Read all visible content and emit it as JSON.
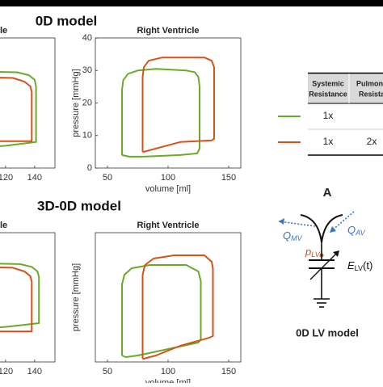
{
  "panel_titles": [
    "0D model",
    "3D-0D model"
  ],
  "chart_data": [
    {
      "type": "line",
      "title": "le",
      "xlim": [
        100,
        154
      ],
      "ylim": [
        0,
        140
      ],
      "xticks": [
        120,
        140
      ],
      "series": [
        {
          "color": "#6aaa2a",
          "x": [
            100,
            128,
            136,
            140,
            141,
            141,
            120,
            100
          ],
          "values": [
            104,
            103,
            100,
            95,
            88,
            28,
            24,
            22
          ]
        },
        {
          "color": "#d2541b",
          "x": [
            100,
            125,
            133,
            137,
            138,
            138,
            100
          ],
          "values": [
            98,
            97,
            93,
            88,
            82,
            29,
            29
          ]
        }
      ]
    },
    {
      "type": "line",
      "title": "Right Ventricle",
      "xlabel": "volume [ml]",
      "ylabel": "pressure [mmHg]",
      "xlim": [
        40,
        160
      ],
      "ylim": [
        0,
        40
      ],
      "xticks": [
        50,
        100,
        150
      ],
      "yticks": [
        0,
        10,
        20,
        30,
        40
      ],
      "series": [
        {
          "color": "#6aaa2a",
          "x": [
            62,
            62,
            63,
            67,
            75,
            90,
            115,
            122,
            125,
            126,
            126,
            124,
            110,
            80,
            68,
            62
          ],
          "values": [
            4,
            24,
            27,
            29,
            30,
            30.5,
            30,
            29.5,
            28,
            25,
            6,
            4.5,
            4,
            3.5,
            3.5,
            4
          ]
        },
        {
          "color": "#d2541b",
          "x": [
            79,
            79,
            80,
            84,
            95,
            130,
            136,
            138,
            138,
            136,
            110,
            90,
            80,
            79
          ],
          "values": [
            5,
            28,
            31,
            33,
            34,
            34,
            33,
            31,
            9,
            8.5,
            8,
            6,
            5,
            5
          ]
        }
      ]
    },
    {
      "type": "line",
      "title": "le",
      "xlim": [
        100,
        154
      ],
      "ylim": [
        0,
        140
      ],
      "xticks": [
        120,
        140
      ],
      "series": [
        {
          "color": "#6aaa2a",
          "x": [
            100,
            130,
            138,
            142,
            143,
            143,
            120,
            100
          ],
          "values": [
            107,
            106,
            103,
            98,
            92,
            42,
            38,
            36
          ]
        },
        {
          "color": "#d2541b",
          "x": [
            100,
            125,
            133,
            137,
            138,
            138,
            100
          ],
          "values": [
            103,
            102,
            98,
            93,
            87,
            33,
            33
          ]
        }
      ]
    },
    {
      "type": "line",
      "title": "Right Ventricle",
      "xlabel": "volume [ml]",
      "ylabel": "pressure [mmHg]",
      "xlim": [
        40,
        160
      ],
      "ylim": [
        0,
        40
      ],
      "xticks": [
        50,
        100,
        150
      ],
      "series": [
        {
          "color": "#6aaa2a",
          "x": [
            62,
            62,
            64,
            70,
            85,
            115,
            125,
            127,
            127,
            125,
            100,
            75,
            65,
            62
          ],
          "values": [
            2,
            24,
            27,
            29,
            30,
            30,
            28,
            25,
            7,
            6,
            4,
            2,
            1.5,
            2
          ]
        },
        {
          "color": "#d2541b",
          "x": [
            79,
            79,
            81,
            88,
            105,
            130,
            136,
            137,
            137,
            134,
            110,
            90,
            80,
            79
          ],
          "values": [
            1,
            27,
            30,
            32,
            33,
            33,
            31,
            29,
            8,
            7.5,
            5,
            2,
            1,
            1
          ]
        }
      ]
    }
  ],
  "table": {
    "header": [
      [
        "Systemic",
        "Resistance"
      ],
      [
        "Pulmona",
        "Resista"
      ]
    ],
    "rows": [
      {
        "color": "#6aaa2a",
        "cells": [
          "1x"
        ]
      },
      {
        "color": "#d2541b",
        "cells": [
          "1x",
          "2x"
        ]
      }
    ]
  },
  "diagram": {
    "label": "A",
    "q_mv": {
      "main": "Q",
      "sub": "MV"
    },
    "q_av": {
      "main": "Q",
      "sub": "AV"
    },
    "p_lv": {
      "main": "p",
      "sub": "LV"
    },
    "e_lv": {
      "main": "E",
      "sub": "LV",
      "tail": "(t)"
    },
    "caption": "0D LV model"
  }
}
